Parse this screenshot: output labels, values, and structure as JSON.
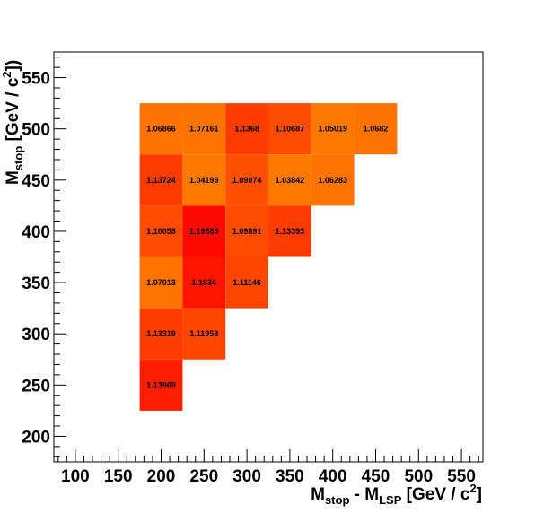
{
  "chart_data": {
    "type": "heatmap",
    "xlabel": {
      "main": "M",
      "sub1": "stop",
      "mid": " - M",
      "sub2": "LSP",
      "unit": " [GeV / c",
      "sup": "2",
      "close": "]"
    },
    "ylabel": {
      "main": "M",
      "sub": "stop",
      "unit": " [GeV / c",
      "sup": "2",
      "close": "])"
    },
    "xlim": [
      75,
      575
    ],
    "ylim": [
      175,
      575
    ],
    "x_ticks": [
      "100",
      "150",
      "200",
      "250",
      "300",
      "350",
      "400",
      "450",
      "500",
      "550"
    ],
    "y_ticks": [
      "200",
      "250",
      "300",
      "350",
      "400",
      "450",
      "500",
      "550"
    ],
    "x_tick_values": [
      100,
      150,
      200,
      250,
      300,
      350,
      400,
      450,
      500,
      550
    ],
    "y_tick_values": [
      200,
      250,
      300,
      350,
      400,
      450,
      500,
      550
    ],
    "bin_width_x": 50,
    "bin_width_y": 50,
    "cells": [
      {
        "x": 200,
        "y": 500,
        "value": "1.06866",
        "color": "#ff7300"
      },
      {
        "x": 250,
        "y": 500,
        "value": "1.07161",
        "color": "#ff7300"
      },
      {
        "x": 300,
        "y": 500,
        "value": "1.1368",
        "color": "#ff3c00"
      },
      {
        "x": 350,
        "y": 500,
        "value": "1.10687",
        "color": "#ff4c00"
      },
      {
        "x": 400,
        "y": 500,
        "value": "1.05019",
        "color": "#ff7800"
      },
      {
        "x": 450,
        "y": 500,
        "value": "1.0682",
        "color": "#ff7300"
      },
      {
        "x": 200,
        "y": 450,
        "value": "1.13724",
        "color": "#ff3c00"
      },
      {
        "x": 250,
        "y": 450,
        "value": "1.04199",
        "color": "#ff7800"
      },
      {
        "x": 300,
        "y": 450,
        "value": "1.09074",
        "color": "#ff5000"
      },
      {
        "x": 350,
        "y": 450,
        "value": "1.03842",
        "color": "#ff7800"
      },
      {
        "x": 400,
        "y": 450,
        "value": "1.06283",
        "color": "#ff7300"
      },
      {
        "x": 200,
        "y": 400,
        "value": "1.10058",
        "color": "#ff4c00"
      },
      {
        "x": 250,
        "y": 400,
        "value": "1.19885",
        "color": "#ff0a00"
      },
      {
        "x": 300,
        "y": 400,
        "value": "1.09891",
        "color": "#ff4c00"
      },
      {
        "x": 350,
        "y": 400,
        "value": "1.13393",
        "color": "#ff3c00"
      },
      {
        "x": 200,
        "y": 350,
        "value": "1.07013",
        "color": "#ff7300"
      },
      {
        "x": 250,
        "y": 350,
        "value": "1.1834",
        "color": "#ff1400"
      },
      {
        "x": 300,
        "y": 350,
        "value": "1.11146",
        "color": "#ff4600"
      },
      {
        "x": 200,
        "y": 300,
        "value": "1.13319",
        "color": "#ff3c00"
      },
      {
        "x": 250,
        "y": 300,
        "value": "1.11958",
        "color": "#ff4600"
      },
      {
        "x": 200,
        "y": 250,
        "value": "1.13969",
        "color": "#ff1e00"
      }
    ]
  }
}
